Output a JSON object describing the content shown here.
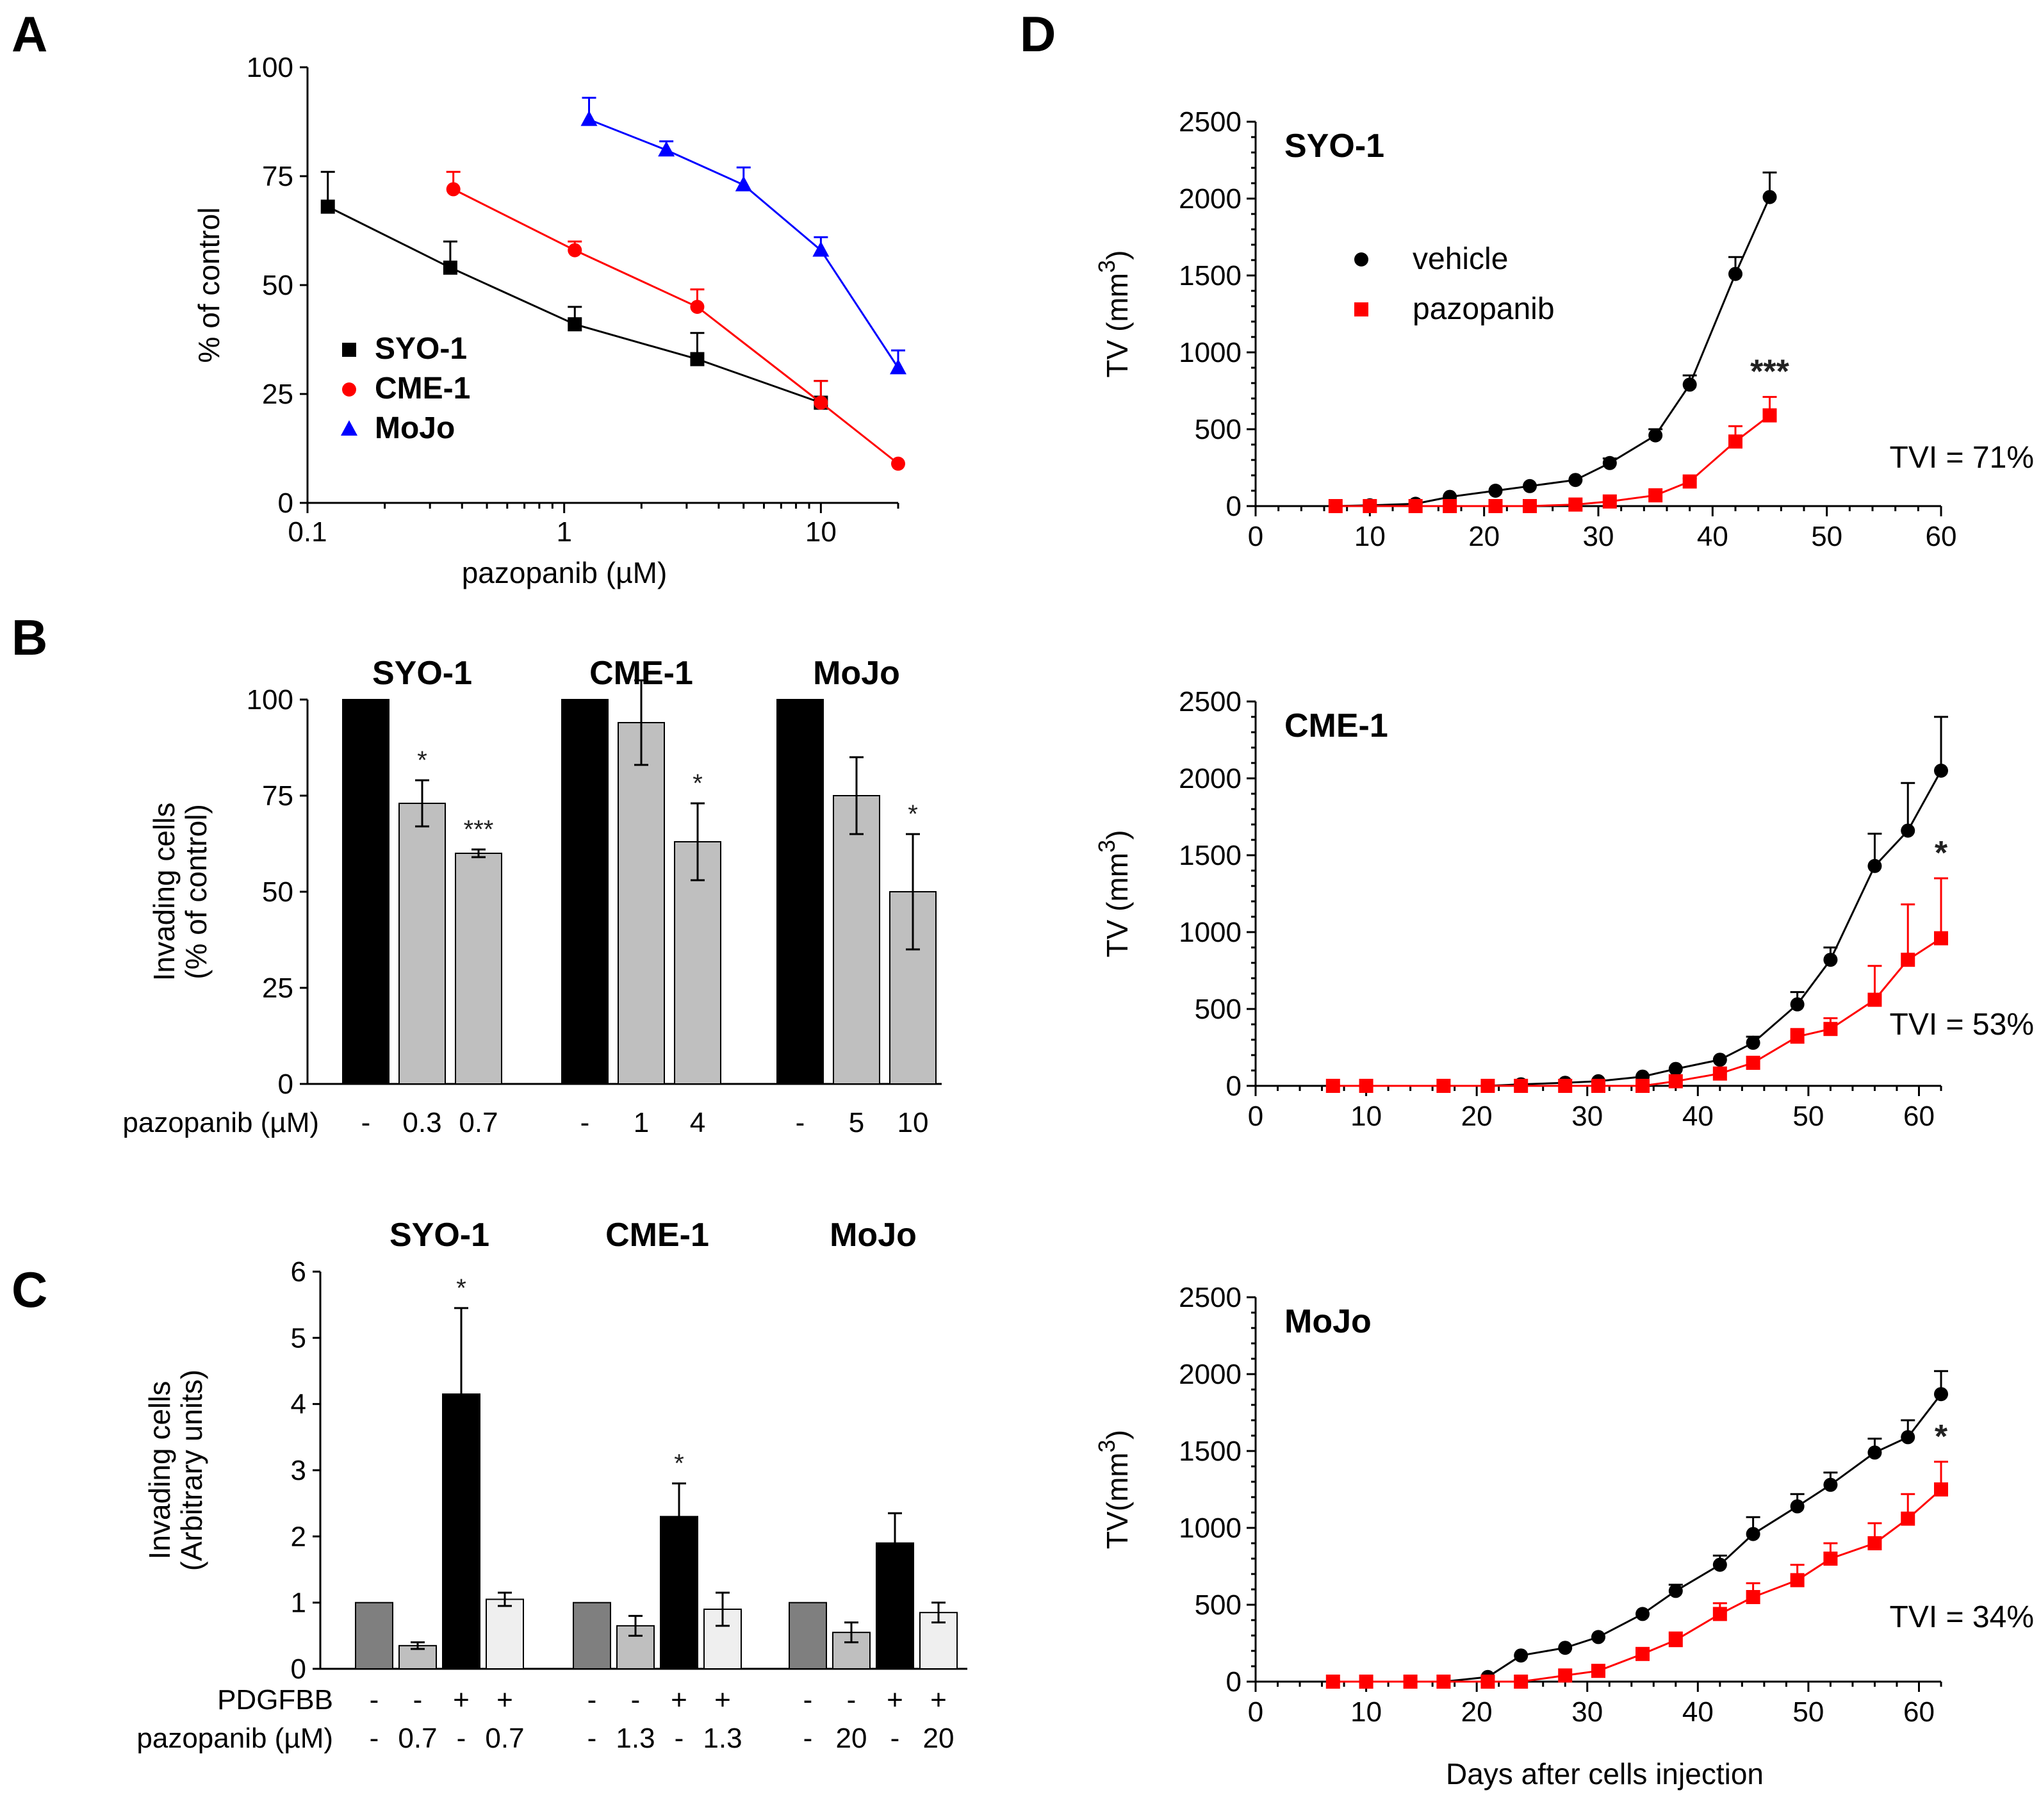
{
  "panel_letters": [
    "A",
    "B",
    "C",
    "D"
  ],
  "colors": {
    "black": "#000000",
    "red": "#ff0000",
    "blue": "#0000ff",
    "gray_bar": "#bfbfbf",
    "dark_gray_bar": "#7f7f7f",
    "light_bar": "#efefef"
  },
  "chart_data": [
    {
      "id": "A",
      "type": "line",
      "xscale": "log",
      "xlim": [
        0.1,
        20
      ],
      "ylim": [
        0,
        100
      ],
      "xticks": [
        0.1,
        1,
        10
      ],
      "xtick_labels": [
        "0.1",
        "1",
        "10"
      ],
      "yticks": [
        0,
        25,
        50,
        75,
        100
      ],
      "ytick_labels": [
        "0",
        "25",
        "50",
        "75",
        "100"
      ],
      "xlabel": "pazopanib (µM)",
      "ylabel": "% of control",
      "legend_position": "lower-left",
      "series": [
        {
          "name": "SYO-1",
          "color": "#000000",
          "marker": "square",
          "x": [
            0.12,
            0.36,
            1.1,
            3.3,
            10
          ],
          "y": [
            68,
            54,
            41,
            33,
            23
          ],
          "err": [
            8,
            6,
            4,
            6,
            5
          ]
        },
        {
          "name": "CME-1",
          "color": "#ff0000",
          "marker": "circle",
          "x": [
            0.37,
            1.1,
            3.3,
            10,
            20
          ],
          "y": [
            72,
            58,
            45,
            23,
            9
          ],
          "err": [
            4,
            2,
            4,
            5,
            0
          ]
        },
        {
          "name": "MoJo",
          "color": "#0000ff",
          "marker": "triangle",
          "x": [
            1.25,
            2.5,
            5,
            10,
            20
          ],
          "y": [
            88,
            81,
            73,
            58,
            31
          ],
          "err": [
            5,
            2,
            4,
            3,
            4
          ]
        }
      ]
    },
    {
      "id": "B",
      "type": "bar",
      "ylim": [
        0,
        100
      ],
      "yticks": [
        0,
        25,
        50,
        75,
        100
      ],
      "ytick_labels": [
        "0",
        "25",
        "50",
        "75",
        "100"
      ],
      "ylabel_lines": [
        "Invading cells",
        "(% of control)"
      ],
      "row_label": "pazopanib (µM)",
      "groups": [
        {
          "name": "SYO-1",
          "doses": [
            "-",
            "0.3",
            "0.7"
          ],
          "values": [
            100,
            73,
            60
          ],
          "err": [
            0,
            6,
            1
          ],
          "stars": [
            "",
            "*",
            "***"
          ]
        },
        {
          "name": "CME-1",
          "doses": [
            "-",
            "1",
            "4"
          ],
          "values": [
            100,
            94,
            63
          ],
          "err": [
            0,
            11,
            10
          ],
          "stars": [
            "",
            "",
            "*"
          ]
        },
        {
          "name": "MoJo",
          "doses": [
            "-",
            "5",
            "10"
          ],
          "values": [
            100,
            75,
            50
          ],
          "err": [
            0,
            10,
            15
          ],
          "stars": [
            "",
            "",
            "*"
          ]
        }
      ]
    },
    {
      "id": "C",
      "type": "bar",
      "ylim": [
        0,
        6
      ],
      "yticks": [
        0,
        1,
        2,
        3,
        4,
        5,
        6
      ],
      "ytick_labels": [
        "0",
        "1",
        "2",
        "3",
        "4",
        "5",
        "6"
      ],
      "ylabel_lines": [
        "Invading cells",
        "(Arbitrary units)"
      ],
      "row_labels": [
        "PDGFBB",
        "pazopanib (µM)"
      ],
      "groups": [
        {
          "name": "SYO-1",
          "pdgfbb": [
            "-",
            "-",
            "+",
            "+"
          ],
          "doses": [
            "-",
            "0.7",
            "-",
            "0.7"
          ],
          "values": [
            1.0,
            0.35,
            4.15,
            1.05
          ],
          "err": [
            0,
            0.05,
            1.3,
            0.1
          ],
          "stars": [
            "",
            "",
            "*",
            ""
          ]
        },
        {
          "name": "CME-1",
          "pdgfbb": [
            "-",
            "-",
            "+",
            "+"
          ],
          "doses": [
            "-",
            "1.3",
            "-",
            "1.3"
          ],
          "values": [
            1.0,
            0.65,
            2.3,
            0.9
          ],
          "err": [
            0,
            0.15,
            0.5,
            0.25
          ],
          "stars": [
            "",
            "",
            "*",
            ""
          ]
        },
        {
          "name": "MoJo",
          "pdgfbb": [
            "-",
            "-",
            "+",
            "+"
          ],
          "doses": [
            "-",
            "20",
            "-",
            "20"
          ],
          "values": [
            1.0,
            0.55,
            1.9,
            0.85
          ],
          "err": [
            0,
            0.15,
            0.45,
            0.15
          ],
          "stars": [
            "",
            "",
            "",
            ""
          ]
        }
      ]
    },
    {
      "id": "D1",
      "type": "line",
      "title": "SYO-1",
      "xlim": [
        0,
        60
      ],
      "ylim": [
        0,
        2500
      ],
      "xticks": [
        0,
        10,
        20,
        30,
        40,
        50,
        60
      ],
      "xtick_labels": [
        "0",
        "10",
        "20",
        "30",
        "40",
        "50",
        "60"
      ],
      "yticks": [
        0,
        500,
        1000,
        1500,
        2000,
        2500
      ],
      "ytick_labels": [
        "0",
        "500",
        "1000",
        "1500",
        "2000",
        "2500"
      ],
      "ylabel": "TV (mm",
      "ylabel_sup": "3",
      "ylabel_close": ")",
      "legend": [
        "vehicle",
        "pazopanib"
      ],
      "annotation": "TVI = 71%",
      "star": "***",
      "series": [
        {
          "name": "vehicle",
          "color": "#000000",
          "marker": "circle",
          "x": [
            7,
            10,
            14,
            17,
            21,
            24,
            28,
            31,
            35,
            38,
            42,
            45
          ],
          "y": [
            0,
            5,
            15,
            60,
            100,
            130,
            170,
            280,
            460,
            790,
            1510,
            2010
          ],
          "err": [
            0,
            0,
            0,
            0,
            0,
            0,
            0,
            30,
            40,
            60,
            110,
            160
          ]
        },
        {
          "name": "pazopanib",
          "color": "#ff0000",
          "marker": "square",
          "x": [
            7,
            10,
            14,
            17,
            21,
            24,
            28,
            31,
            35,
            38,
            42,
            45
          ],
          "y": [
            0,
            0,
            0,
            0,
            0,
            0,
            10,
            30,
            70,
            160,
            420,
            590
          ],
          "err": [
            0,
            0,
            0,
            0,
            0,
            0,
            0,
            0,
            20,
            20,
            100,
            120
          ]
        }
      ]
    },
    {
      "id": "D2",
      "type": "line",
      "title": "CME-1",
      "xlim": [
        0,
        62
      ],
      "ylim": [
        0,
        2500
      ],
      "xticks": [
        0,
        10,
        20,
        30,
        40,
        50,
        60
      ],
      "xtick_labels": [
        "0",
        "10",
        "20",
        "30",
        "40",
        "50",
        "60"
      ],
      "yticks": [
        0,
        500,
        1000,
        1500,
        2000,
        2500
      ],
      "ytick_labels": [
        "0",
        "500",
        "1000",
        "1500",
        "2000",
        "2500"
      ],
      "ylabel": "TV (mm",
      "ylabel_sup": "3",
      "ylabel_close": ")",
      "annotation": "TVI = 53%",
      "star": "*",
      "series": [
        {
          "name": "vehicle",
          "color": "#000000",
          "marker": "circle",
          "x": [
            7,
            10,
            17,
            21,
            24,
            28,
            31,
            35,
            38,
            42,
            45,
            49,
            52,
            56,
            59,
            62
          ],
          "y": [
            0,
            0,
            0,
            0,
            10,
            20,
            30,
            60,
            110,
            170,
            280,
            530,
            820,
            1430,
            1660,
            2050
          ],
          "err": [
            0,
            0,
            0,
            0,
            0,
            0,
            0,
            0,
            0,
            0,
            40,
            80,
            80,
            210,
            310,
            350
          ]
        },
        {
          "name": "pazopanib",
          "color": "#ff0000",
          "marker": "square",
          "x": [
            7,
            10,
            17,
            21,
            24,
            28,
            31,
            35,
            38,
            42,
            45,
            49,
            52,
            56,
            59,
            62
          ],
          "y": [
            0,
            0,
            0,
            0,
            0,
            0,
            0,
            0,
            30,
            80,
            150,
            320,
            370,
            560,
            820,
            960
          ],
          "err": [
            0,
            0,
            0,
            0,
            0,
            0,
            0,
            0,
            0,
            0,
            0,
            50,
            70,
            220,
            360,
            390
          ]
        }
      ]
    },
    {
      "id": "D3",
      "type": "line",
      "title": "MoJo",
      "xlim": [
        0,
        62
      ],
      "ylim": [
        0,
        2500
      ],
      "xticks": [
        0,
        10,
        20,
        30,
        40,
        50,
        60
      ],
      "xtick_labels": [
        "0",
        "10",
        "20",
        "30",
        "40",
        "50",
        "60"
      ],
      "yticks": [
        0,
        500,
        1000,
        1500,
        2000,
        2500
      ],
      "ytick_labels": [
        "0",
        "500",
        "1000",
        "1500",
        "2000",
        "2500"
      ],
      "ylabel": "TV(mm",
      "ylabel_sup": "3",
      "ylabel_close": ")",
      "xlabel": "Days after cells injection",
      "annotation": "TVI = 34%",
      "star": "*",
      "series": [
        {
          "name": "vehicle",
          "color": "#000000",
          "marker": "circle",
          "x": [
            7,
            10,
            14,
            17,
            21,
            24,
            28,
            31,
            35,
            38,
            42,
            45,
            49,
            52,
            56,
            59,
            62
          ],
          "y": [
            0,
            0,
            0,
            0,
            30,
            170,
            220,
            290,
            440,
            590,
            760,
            960,
            1140,
            1280,
            1490,
            1590,
            1870
          ],
          "err": [
            0,
            0,
            0,
            0,
            0,
            0,
            0,
            0,
            0,
            40,
            60,
            110,
            80,
            80,
            90,
            110,
            150
          ]
        },
        {
          "name": "pazopanib",
          "color": "#ff0000",
          "marker": "square",
          "x": [
            7,
            10,
            14,
            17,
            21,
            24,
            28,
            31,
            35,
            38,
            42,
            45,
            49,
            52,
            56,
            59,
            62
          ],
          "y": [
            0,
            0,
            0,
            0,
            0,
            0,
            40,
            70,
            180,
            270,
            440,
            550,
            660,
            800,
            900,
            1060,
            1250
          ],
          "err": [
            0,
            0,
            0,
            0,
            0,
            0,
            0,
            0,
            0,
            50,
            70,
            90,
            100,
            100,
            130,
            160,
            180
          ]
        }
      ]
    }
  ]
}
